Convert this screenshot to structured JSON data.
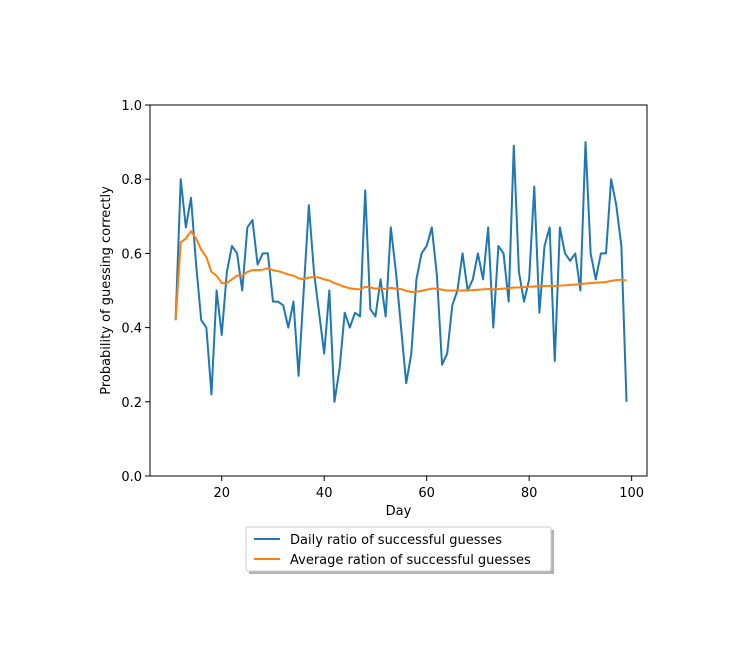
{
  "chart_data": {
    "type": "line",
    "title": "",
    "xlabel": "Day",
    "ylabel": "Probability of guessing correctly",
    "xlim": [
      6,
      103
    ],
    "ylim": [
      0.0,
      1.0
    ],
    "xticks": [
      20,
      40,
      60,
      80,
      100
    ],
    "yticks": [
      0.0,
      0.2,
      0.4,
      0.6,
      0.8,
      1.0
    ],
    "xtick_labels": [
      "20",
      "40",
      "60",
      "80",
      "100"
    ],
    "ytick_labels": [
      "0.0",
      "0.2",
      "0.4",
      "0.6",
      "0.8",
      "1.0"
    ],
    "grid": false,
    "legend_position": "bottom-center-outside",
    "series": [
      {
        "name": "Daily ratio of successful guesses",
        "color": "#1f77b4",
        "x": [
          11,
          12,
          13,
          14,
          15,
          16,
          17,
          18,
          19,
          20,
          21,
          22,
          23,
          24,
          25,
          26,
          27,
          28,
          29,
          30,
          31,
          32,
          33,
          34,
          35,
          36,
          37,
          38,
          39,
          40,
          41,
          42,
          43,
          44,
          45,
          46,
          47,
          48,
          49,
          50,
          51,
          52,
          53,
          54,
          55,
          56,
          57,
          58,
          59,
          60,
          61,
          62,
          63,
          64,
          65,
          66,
          67,
          68,
          69,
          70,
          71,
          72,
          73,
          74,
          75,
          76,
          77,
          78,
          79,
          80,
          81,
          82,
          83,
          84,
          85,
          86,
          87,
          88,
          89,
          90,
          91,
          92,
          93,
          94,
          95,
          96,
          97,
          98,
          99
        ],
        "values": [
          0.42,
          0.8,
          0.67,
          0.75,
          0.57,
          0.42,
          0.4,
          0.22,
          0.5,
          0.38,
          0.55,
          0.62,
          0.6,
          0.5,
          0.67,
          0.69,
          0.57,
          0.6,
          0.6,
          0.47,
          0.47,
          0.46,
          0.4,
          0.47,
          0.27,
          0.5,
          0.73,
          0.55,
          0.44,
          0.33,
          0.5,
          0.2,
          0.29,
          0.44,
          0.4,
          0.44,
          0.43,
          0.77,
          0.45,
          0.43,
          0.53,
          0.43,
          0.67,
          0.55,
          0.4,
          0.25,
          0.33,
          0.53,
          0.6,
          0.62,
          0.67,
          0.54,
          0.3,
          0.33,
          0.46,
          0.5,
          0.6,
          0.5,
          0.53,
          0.6,
          0.53,
          0.67,
          0.4,
          0.62,
          0.6,
          0.47,
          0.89,
          0.55,
          0.47,
          0.53,
          0.78,
          0.44,
          0.62,
          0.67,
          0.31,
          0.67,
          0.6,
          0.58,
          0.6,
          0.5,
          0.9,
          0.6,
          0.53,
          0.6,
          0.6,
          0.8,
          0.73,
          0.62,
          0.2
        ]
      },
      {
        "name": "Average ration of successful guesses",
        "color": "#ff7f0e",
        "x": [
          11,
          12,
          13,
          14,
          15,
          16,
          17,
          18,
          19,
          20,
          21,
          22,
          23,
          24,
          25,
          26,
          27,
          28,
          29,
          30,
          31,
          32,
          33,
          34,
          35,
          36,
          37,
          38,
          39,
          40,
          41,
          42,
          43,
          44,
          45,
          46,
          47,
          48,
          49,
          50,
          51,
          52,
          53,
          54,
          55,
          56,
          57,
          58,
          59,
          60,
          61,
          62,
          63,
          64,
          65,
          66,
          67,
          68,
          69,
          70,
          71,
          72,
          73,
          74,
          75,
          76,
          77,
          78,
          79,
          80,
          81,
          82,
          83,
          84,
          85,
          86,
          87,
          88,
          89,
          90,
          91,
          92,
          93,
          94,
          95,
          96,
          97,
          98,
          99
        ],
        "values": [
          0.42,
          0.63,
          0.64,
          0.66,
          0.64,
          0.61,
          0.59,
          0.55,
          0.54,
          0.52,
          0.52,
          0.53,
          0.54,
          0.54,
          0.55,
          0.555,
          0.555,
          0.556,
          0.56,
          0.555,
          0.552,
          0.548,
          0.543,
          0.54,
          0.533,
          0.53,
          0.535,
          0.536,
          0.535,
          0.53,
          0.527,
          0.52,
          0.515,
          0.51,
          0.506,
          0.504,
          0.503,
          0.51,
          0.508,
          0.505,
          0.506,
          0.504,
          0.507,
          0.505,
          0.504,
          0.499,
          0.496,
          0.497,
          0.499,
          0.502,
          0.505,
          0.505,
          0.502,
          0.5,
          0.5,
          0.5,
          0.5,
          0.501,
          0.501,
          0.502,
          0.503,
          0.504,
          0.503,
          0.504,
          0.505,
          0.506,
          0.508,
          0.508,
          0.509,
          0.51,
          0.511,
          0.511,
          0.512,
          0.512,
          0.512,
          0.513,
          0.514,
          0.515,
          0.516,
          0.517,
          0.519,
          0.52,
          0.521,
          0.522,
          0.523,
          0.526,
          0.528,
          0.529,
          0.527
        ]
      }
    ]
  }
}
